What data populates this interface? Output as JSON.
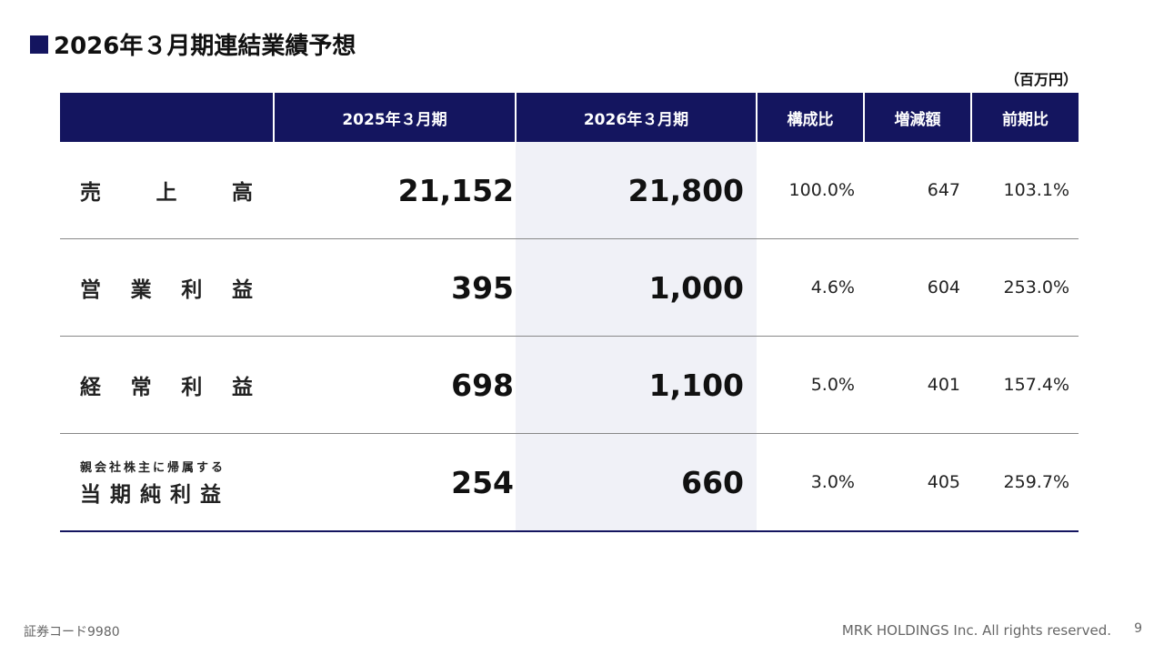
{
  "title": "2026年３月期連結業績予想",
  "unit": "（百万円）",
  "table": {
    "headers": [
      "",
      "2025年３月期",
      "2026年３月期",
      "構成比",
      "増減額",
      "前期比"
    ],
    "rows": [
      {
        "label_chars": [
          "売",
          "上",
          "高"
        ],
        "prev": "21,152",
        "curr": "21,800",
        "ratio": "100.0%",
        "diff": "647",
        "yoy": "103.1%"
      },
      {
        "label_chars": [
          "営",
          "業",
          "利",
          "益"
        ],
        "prev": "395",
        "curr": "1,000",
        "ratio": "4.6%",
        "diff": "604",
        "yoy": "253.0%"
      },
      {
        "label_chars": [
          "経",
          "常",
          "利",
          "益"
        ],
        "prev": "698",
        "curr": "1,100",
        "ratio": "5.0%",
        "diff": "401",
        "yoy": "157.4%"
      },
      {
        "label_sub": "親会社株主に帰属する",
        "label_main": "当期純利益",
        "prev": "254",
        "curr": "660",
        "ratio": "3.0%",
        "diff": "405",
        "yoy": "259.7%"
      }
    ]
  },
  "footer": {
    "code": "証券コード9980",
    "copyright": "MRK HOLDINGS Inc. All rights reserved.",
    "page": "9"
  }
}
